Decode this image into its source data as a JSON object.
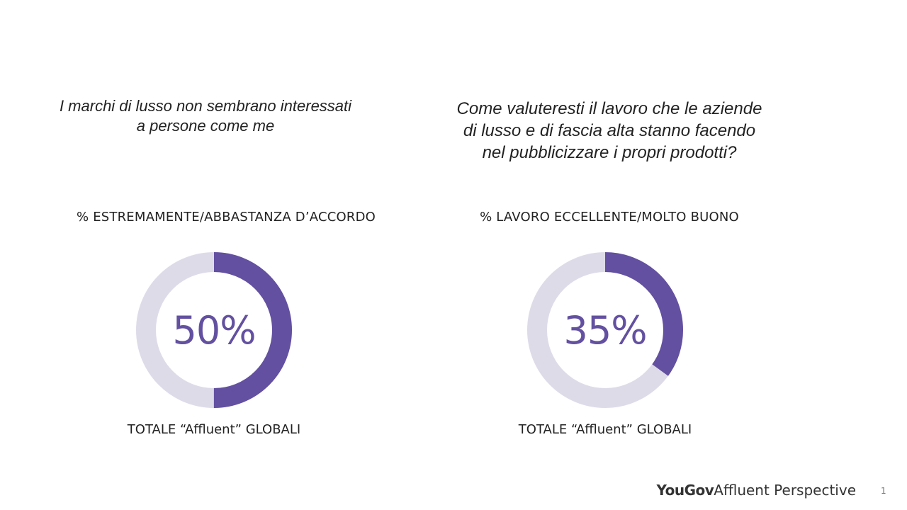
{
  "chart_data": [
    {
      "type": "pie",
      "title": "I marchi di lusso non sembrano interessati a persone come me",
      "subtitle": "% ESTREMAMENTE/ABBASTANZA  D’ACCORDO",
      "value": 50,
      "value_label": "50%",
      "base_label": "TOTALE “Affluent” GLOBALI"
    },
    {
      "type": "pie",
      "title": "Come valuteresti il lavoro che le aziende di lusso e di fascia alta stanno facendo nel pubblicizzare i propri prodotti?",
      "subtitle": "% LAVORO ECCELLENTE/MOLTO  BUONO",
      "value": 35,
      "value_label": "35%",
      "base_label": "TOTALE “Affluent” GLOBALI"
    }
  ],
  "colors": {
    "fill": "#6350a0",
    "track": "#dedbe9"
  },
  "footer": {
    "brand_bold": "YouGov",
    "brand_rest": "Affluent Perspective",
    "page_number": "1"
  }
}
